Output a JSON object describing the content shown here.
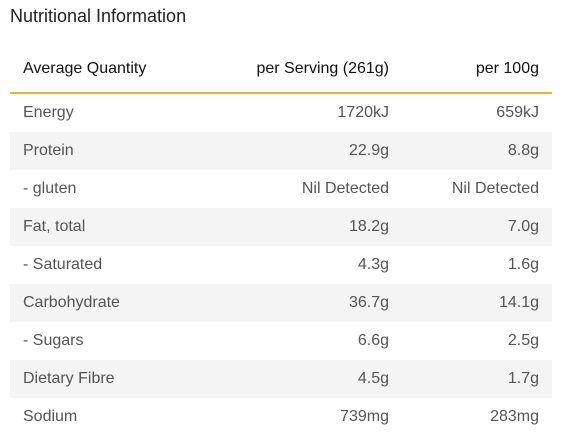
{
  "title": "Nutritional Information",
  "table": {
    "headers": [
      "Average Quantity",
      "per Serving (261g)",
      "per 100g"
    ],
    "rows": [
      {
        "name": "Energy",
        "per_serving": "1720kJ",
        "per_100g": "659kJ"
      },
      {
        "name": "Protein",
        "per_serving": "22.9g",
        "per_100g": "8.8g"
      },
      {
        "name": "- gluten",
        "per_serving": "Nil Detected",
        "per_100g": "Nil Detected"
      },
      {
        "name": "Fat, total",
        "per_serving": "18.2g",
        "per_100g": "7.0g"
      },
      {
        "name": "- Saturated",
        "per_serving": "4.3g",
        "per_100g": "1.6g"
      },
      {
        "name": "Carbohydrate",
        "per_serving": "36.7g",
        "per_100g": "14.1g"
      },
      {
        "name": "- Sugars",
        "per_serving": "6.6g",
        "per_100g": "2.5g"
      },
      {
        "name": "Dietary Fibre",
        "per_serving": "4.5g",
        "per_100g": "1.7g"
      },
      {
        "name": "Sodium",
        "per_serving": "739mg",
        "per_100g": "283mg"
      }
    ]
  },
  "colors": {
    "header_rule": "#f0b429",
    "stripe": "#f4f4f4"
  }
}
